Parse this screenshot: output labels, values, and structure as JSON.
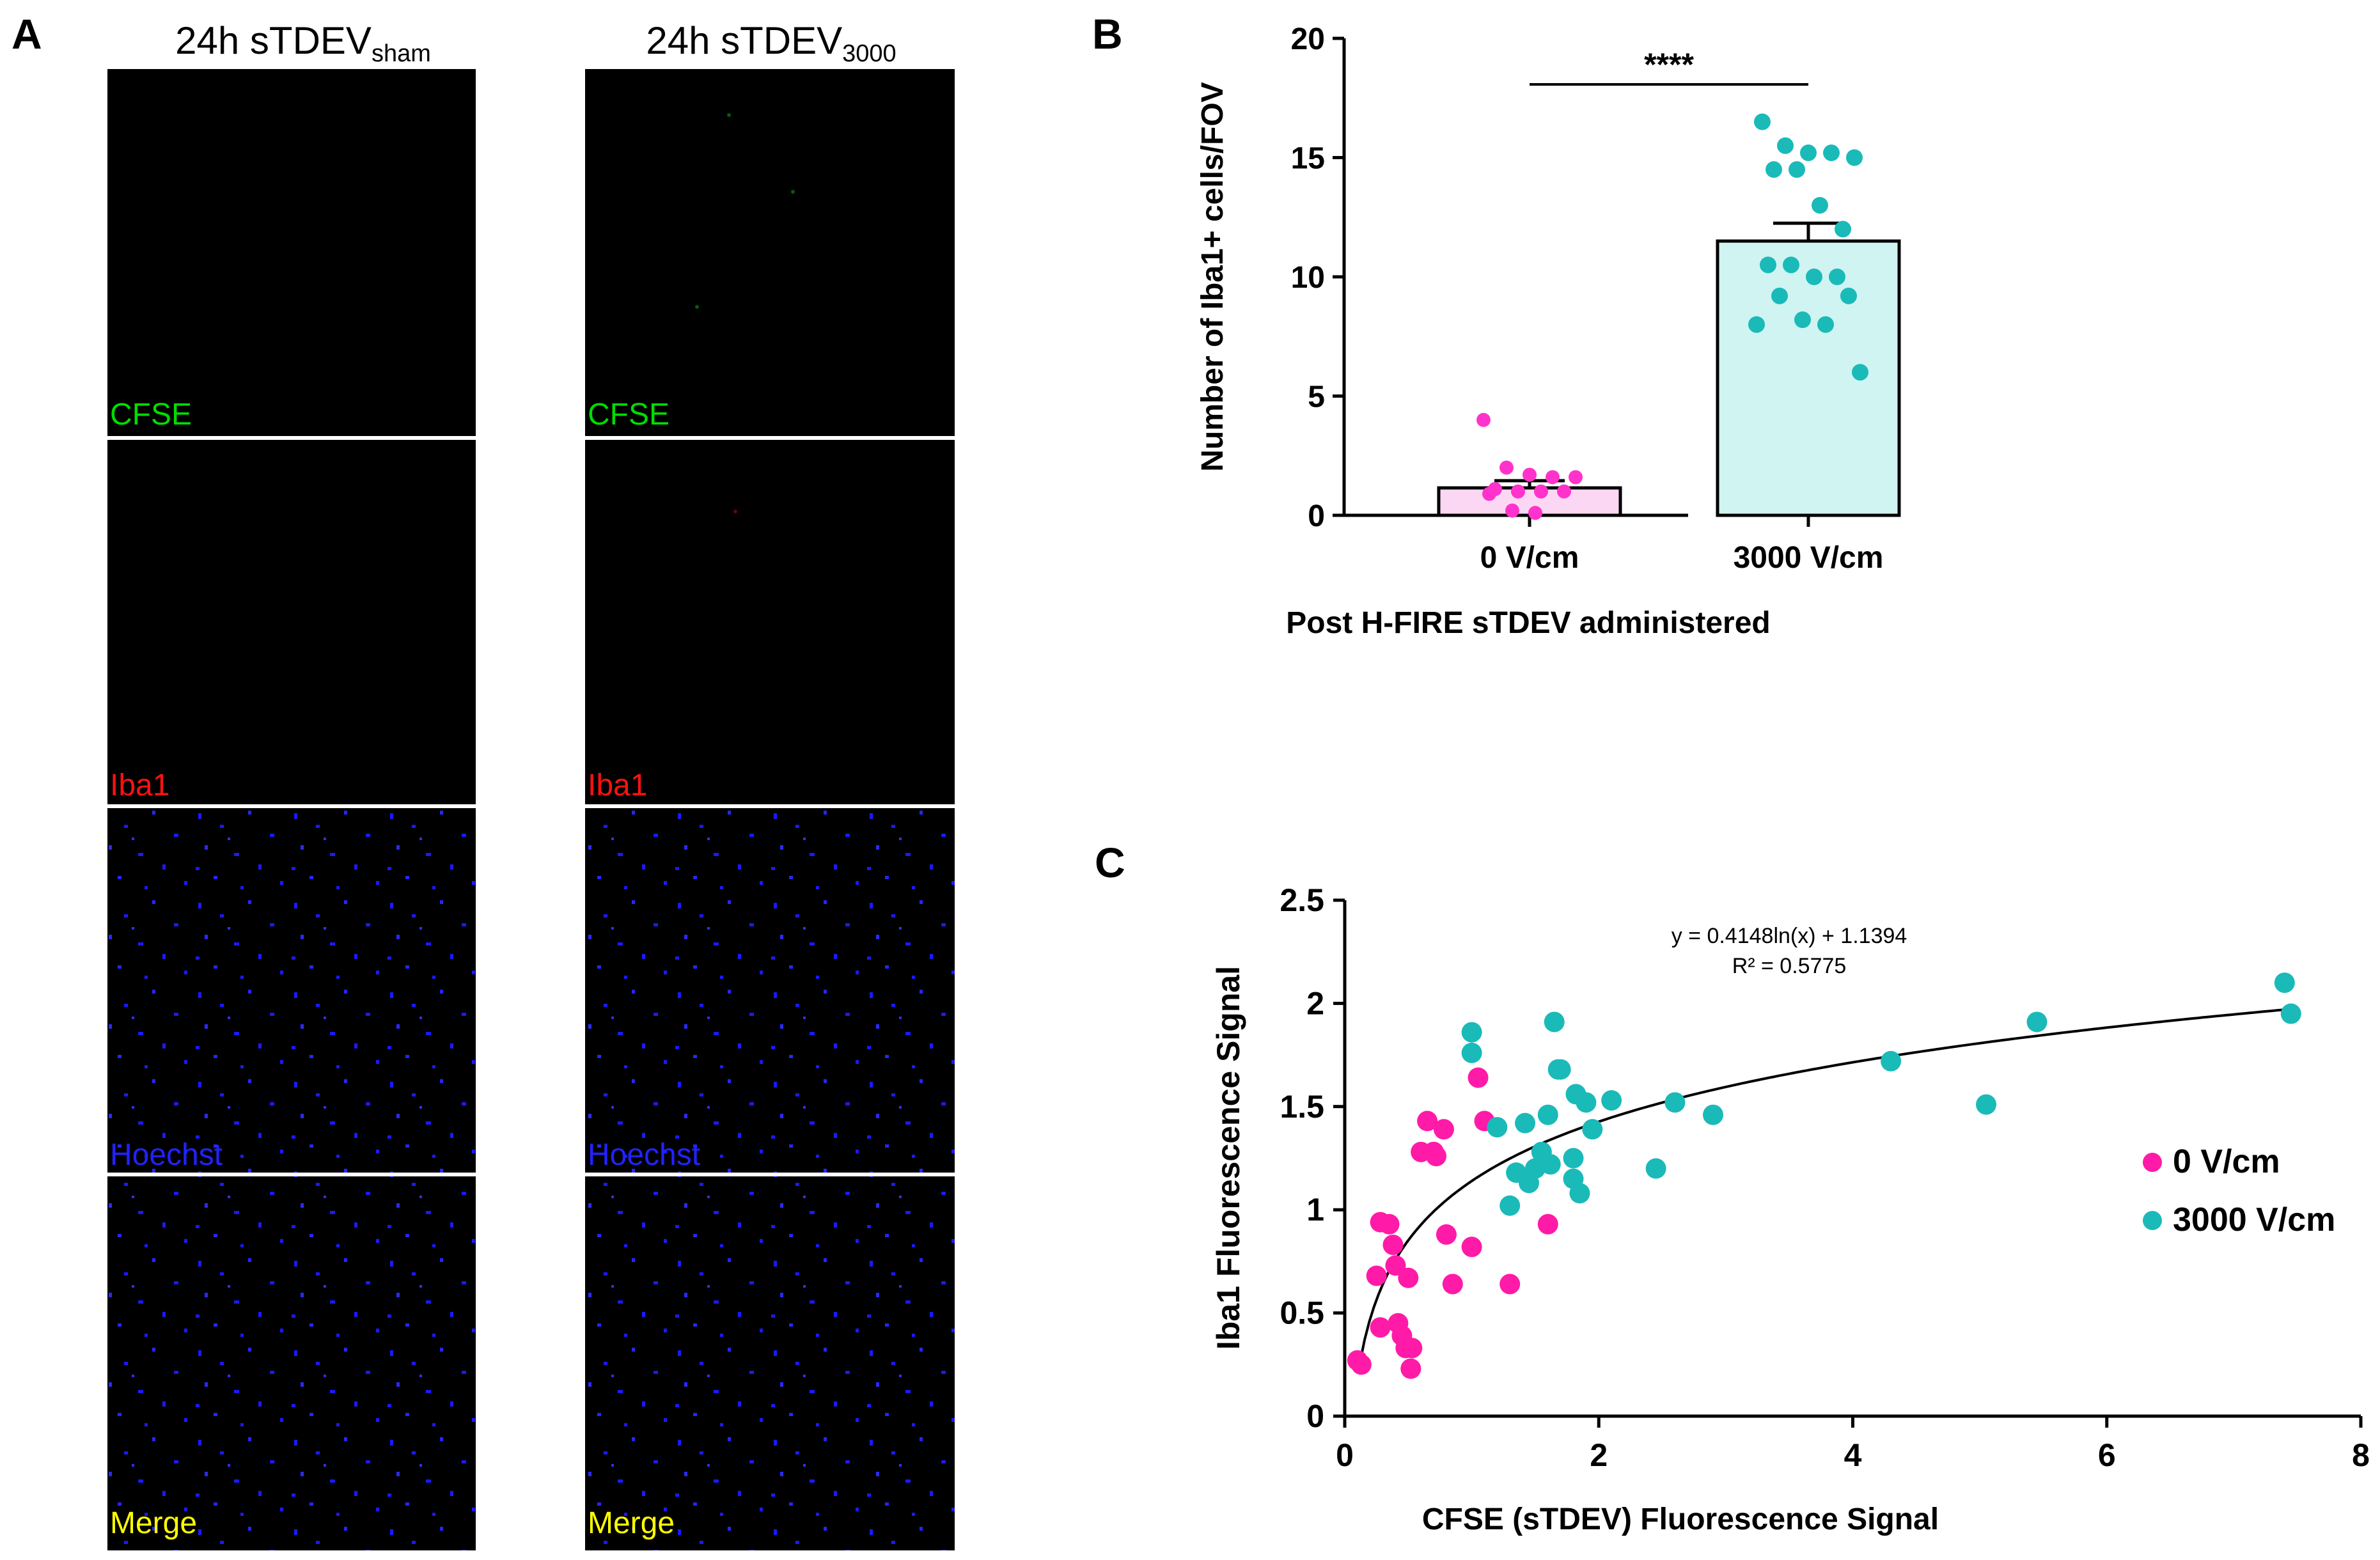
{
  "panel_a": {
    "letter": "A",
    "col_sham": {
      "title_main": "24h sTDEV",
      "title_sub": "sham"
    },
    "col_3000": {
      "title_main": "24h sTDEV",
      "title_sub": "3000"
    },
    "row_labels": [
      "CFSE",
      "Iba1",
      "Hoechst",
      "Merge"
    ],
    "colors": {
      "cfse": "#00dd00",
      "iba1": "#ff1111",
      "hoechst": "#2222ff",
      "merge": "#ffff00",
      "bg": "#000000",
      "nucleus": "#1a1aff"
    }
  },
  "chart_data": [
    {
      "panel": "B",
      "type": "bar",
      "ylabel": "Number of Iba1+ cells/FOV",
      "xlabel": "Post H-FIRE sTDEV administered",
      "categories": [
        "0 V/cm",
        "3000 V/cm"
      ],
      "ylim": [
        0,
        20
      ],
      "yticks": [
        0,
        5,
        10,
        15,
        20
      ],
      "means": [
        1.15,
        11.5
      ],
      "sem": [
        0.3,
        0.75
      ],
      "significance": "****",
      "fill_colors": [
        "#fcd7f3",
        "#cff4f2"
      ],
      "point_colors": [
        "#ff33cc",
        "#1abab8"
      ],
      "points": [
        [
          4.0,
          2.0,
          1.7,
          1.6,
          1.6,
          1.1,
          1.0,
          1.0,
          1.0,
          0.9,
          0.2,
          0.1
        ],
        [
          16.5,
          15.5,
          15.2,
          15.2,
          15.0,
          14.5,
          14.5,
          13.0,
          12.0,
          10.5,
          10.5,
          10.0,
          10.0,
          9.2,
          9.2,
          8.2,
          8.0,
          8.0,
          6.0
        ]
      ]
    },
    {
      "panel": "C",
      "type": "scatter",
      "xlabel": "CFSE (sTDEV) Fluorescence Signal",
      "ylabel": "Iba1 Fluorescence Signal",
      "xlim": [
        0,
        8
      ],
      "ylim": [
        0,
        2.5
      ],
      "xticks": [
        0,
        2,
        4,
        6,
        8
      ],
      "yticks": [
        "0",
        "0.5",
        "1",
        "1.5",
        "2",
        "2.5"
      ],
      "equation": "y = 0.4148ln(x) + 1.1394",
      "r2": "R² = 0.5775",
      "fit": {
        "a": 0.4148,
        "b": 1.1394
      },
      "series": [
        {
          "name": "0 V/cm",
          "color": "#ff1aa8",
          "points": [
            [
              0.1,
              0.27
            ],
            [
              0.13,
              0.25
            ],
            [
              0.25,
              0.68
            ],
            [
              0.28,
              0.94
            ],
            [
              0.28,
              0.43
            ],
            [
              0.35,
              0.93
            ],
            [
              0.38,
              0.83
            ],
            [
              0.4,
              0.73
            ],
            [
              0.42,
              0.45
            ],
            [
              0.45,
              0.39
            ],
            [
              0.48,
              0.33
            ],
            [
              0.5,
              0.67
            ],
            [
              0.52,
              0.23
            ],
            [
              0.53,
              0.33
            ],
            [
              0.6,
              1.28
            ],
            [
              0.65,
              1.43
            ],
            [
              0.7,
              1.28
            ],
            [
              0.72,
              1.26
            ],
            [
              0.78,
              1.39
            ],
            [
              0.8,
              0.88
            ],
            [
              0.85,
              0.64
            ],
            [
              1.0,
              0.82
            ],
            [
              1.05,
              1.64
            ],
            [
              1.1,
              1.43
            ],
            [
              1.3,
              0.64
            ],
            [
              1.6,
              0.93
            ]
          ]
        },
        {
          "name": "3000 V/cm",
          "color": "#1abab8",
          "points": [
            [
              1.0,
              1.86
            ],
            [
              1.0,
              1.76
            ],
            [
              1.2,
              1.4
            ],
            [
              1.3,
              1.02
            ],
            [
              1.35,
              1.18
            ],
            [
              1.42,
              1.42
            ],
            [
              1.45,
              1.13
            ],
            [
              1.5,
              1.2
            ],
            [
              1.55,
              1.28
            ],
            [
              1.6,
              1.46
            ],
            [
              1.62,
              1.22
            ],
            [
              1.65,
              1.91
            ],
            [
              1.68,
              1.68
            ],
            [
              1.7,
              1.68
            ],
            [
              1.8,
              1.25
            ],
            [
              1.8,
              1.15
            ],
            [
              1.82,
              1.56
            ],
            [
              1.85,
              1.08
            ],
            [
              1.9,
              1.52
            ],
            [
              1.95,
              1.39
            ],
            [
              2.1,
              1.53
            ],
            [
              2.45,
              1.2
            ],
            [
              2.6,
              1.52
            ],
            [
              2.9,
              1.46
            ],
            [
              4.3,
              1.72
            ],
            [
              5.05,
              1.51
            ],
            [
              5.45,
              1.91
            ],
            [
              7.4,
              2.1
            ],
            [
              7.45,
              1.95
            ]
          ]
        }
      ]
    }
  ],
  "panel_b": {
    "letter": "B"
  },
  "panel_c": {
    "letter": "C"
  }
}
